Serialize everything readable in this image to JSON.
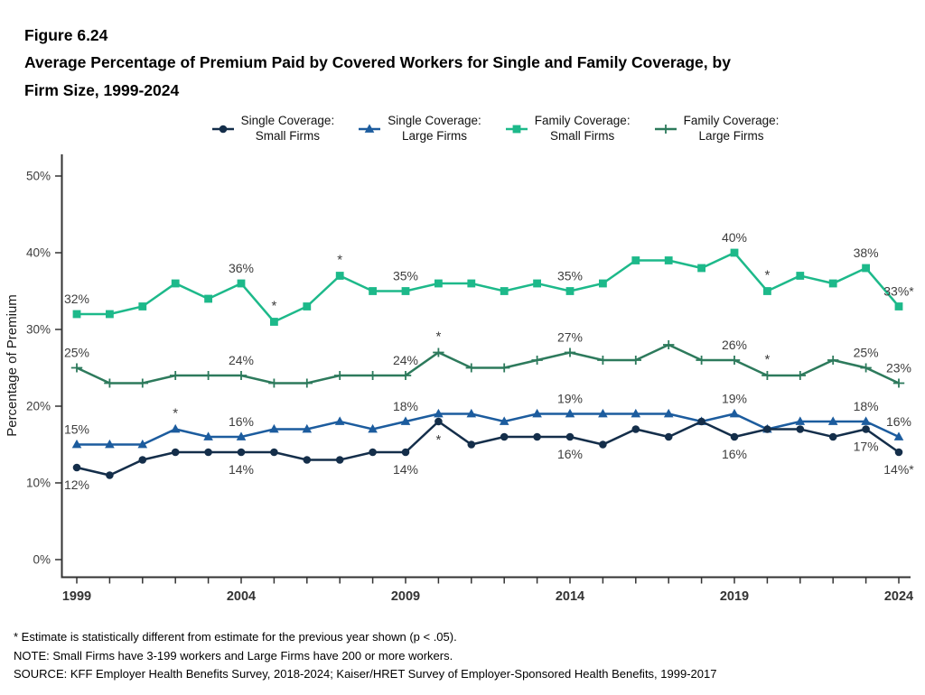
{
  "figure": {
    "number": "Figure 6.24",
    "title_lines": [
      "Average Percentage of Premium Paid by Covered Workers for Single and Family Coverage, by",
      "Firm Size, 1999-2024"
    ]
  },
  "chart_data": {
    "type": "line",
    "title": "Average Percentage of Premium Paid by Covered Workers for Single and Family Coverage, by Firm Size, 1999-2024",
    "x_range": [
      1999,
      2024
    ],
    "x_tick_labels": [
      "1999",
      "2004",
      "2009",
      "2014",
      "2019",
      "2024"
    ],
    "ylabel": "Percentage of Premium",
    "ylim": [
      0,
      50
    ],
    "y_tick_labels": [
      "0%",
      "10%",
      "20%",
      "30%",
      "40%",
      "50%"
    ],
    "grid": false,
    "legend_position": "top",
    "series": [
      {
        "name": "Single Coverage: Small Firms",
        "legend_lines": [
          "Single Coverage:",
          "Small Firms"
        ],
        "marker": "circle",
        "color": "#142e4a",
        "values": [
          12,
          11,
          13,
          14,
          14,
          14,
          14,
          13,
          13,
          14,
          14,
          18,
          15,
          16,
          16,
          16,
          15,
          17,
          16,
          18,
          16,
          17,
          17,
          16,
          17,
          14
        ],
        "point_labels": [
          {
            "year": 1999,
            "text": "12%",
            "pos": "below"
          },
          {
            "year": 2004,
            "text": "14%",
            "pos": "below"
          },
          {
            "year": 2009,
            "text": "14%",
            "pos": "below"
          },
          {
            "year": 2014,
            "text": "16%",
            "pos": "below"
          },
          {
            "year": 2019,
            "text": "16%",
            "pos": "below"
          },
          {
            "year": 2023,
            "text": "17%",
            "pos": "below"
          },
          {
            "year": 2024,
            "text": "14%*",
            "pos": "below"
          }
        ],
        "stars": [
          {
            "year": 2010,
            "pos": "below"
          }
        ]
      },
      {
        "name": "Single Coverage: Large Firms",
        "legend_lines": [
          "Single Coverage:",
          "Large Firms"
        ],
        "marker": "triangle",
        "color": "#1c5c9e",
        "values": [
          15,
          15,
          15,
          17,
          16,
          16,
          17,
          17,
          18,
          17,
          18,
          19,
          19,
          18,
          19,
          19,
          19,
          19,
          19,
          18,
          19,
          17,
          18,
          18,
          18,
          16
        ],
        "point_labels": [
          {
            "year": 1999,
            "text": "15%",
            "pos": "above"
          },
          {
            "year": 2004,
            "text": "16%",
            "pos": "above"
          },
          {
            "year": 2009,
            "text": "18%",
            "pos": "above"
          },
          {
            "year": 2014,
            "text": "19%",
            "pos": "above"
          },
          {
            "year": 2019,
            "text": "19%",
            "pos": "above"
          },
          {
            "year": 2023,
            "text": "18%",
            "pos": "above"
          },
          {
            "year": 2024,
            "text": "16%",
            "pos": "above"
          }
        ],
        "stars": [
          {
            "year": 2002,
            "pos": "above"
          }
        ]
      },
      {
        "name": "Family Coverage: Small Firms",
        "legend_lines": [
          "Family Coverage:",
          "Small Firms"
        ],
        "marker": "square",
        "color": "#1db98a",
        "values": [
          32,
          32,
          33,
          36,
          34,
          36,
          31,
          33,
          37,
          35,
          35,
          36,
          36,
          35,
          36,
          35,
          36,
          39,
          39,
          38,
          40,
          35,
          37,
          36,
          38,
          33
        ],
        "point_labels": [
          {
            "year": 1999,
            "text": "32%",
            "pos": "above"
          },
          {
            "year": 2004,
            "text": "36%",
            "pos": "above"
          },
          {
            "year": 2009,
            "text": "35%",
            "pos": "above"
          },
          {
            "year": 2014,
            "text": "35%",
            "pos": "above"
          },
          {
            "year": 2019,
            "text": "40%",
            "pos": "above"
          },
          {
            "year": 2023,
            "text": "38%",
            "pos": "above"
          },
          {
            "year": 2024,
            "text": "33%*",
            "pos": "above"
          }
        ],
        "stars": [
          {
            "year": 2005,
            "pos": "above"
          },
          {
            "year": 2007,
            "pos": "above"
          },
          {
            "year": 2020,
            "pos": "above"
          }
        ]
      },
      {
        "name": "Family Coverage: Large Firms",
        "legend_lines": [
          "Family Coverage:",
          "Large Firms"
        ],
        "marker": "plus",
        "color": "#2d7a5c",
        "values": [
          25,
          23,
          23,
          24,
          24,
          24,
          23,
          23,
          24,
          24,
          24,
          27,
          25,
          25,
          26,
          27,
          26,
          26,
          28,
          26,
          26,
          24,
          24,
          26,
          25,
          23
        ],
        "point_labels": [
          {
            "year": 1999,
            "text": "25%",
            "pos": "above"
          },
          {
            "year": 2004,
            "text": "24%",
            "pos": "above"
          },
          {
            "year": 2009,
            "text": "24%",
            "pos": "above"
          },
          {
            "year": 2014,
            "text": "27%",
            "pos": "above"
          },
          {
            "year": 2019,
            "text": "26%",
            "pos": "above"
          },
          {
            "year": 2023,
            "text": "25%",
            "pos": "above"
          },
          {
            "year": 2024,
            "text": "23%",
            "pos": "above"
          }
        ],
        "stars": [
          {
            "year": 2010,
            "pos": "above"
          },
          {
            "year": 2020,
            "pos": "above"
          }
        ]
      }
    ]
  },
  "footnotes": [
    "* Estimate is statistically different from estimate for the previous year shown (p < .05).",
    "NOTE: Small Firms have 3-199 workers and Large Firms have 200 or more workers.",
    "SOURCE: KFF Employer Health Benefits Survey, 2018-2024; Kaiser/HRET Survey of Employer-Sponsored Health Benefits, 1999-2017"
  ]
}
